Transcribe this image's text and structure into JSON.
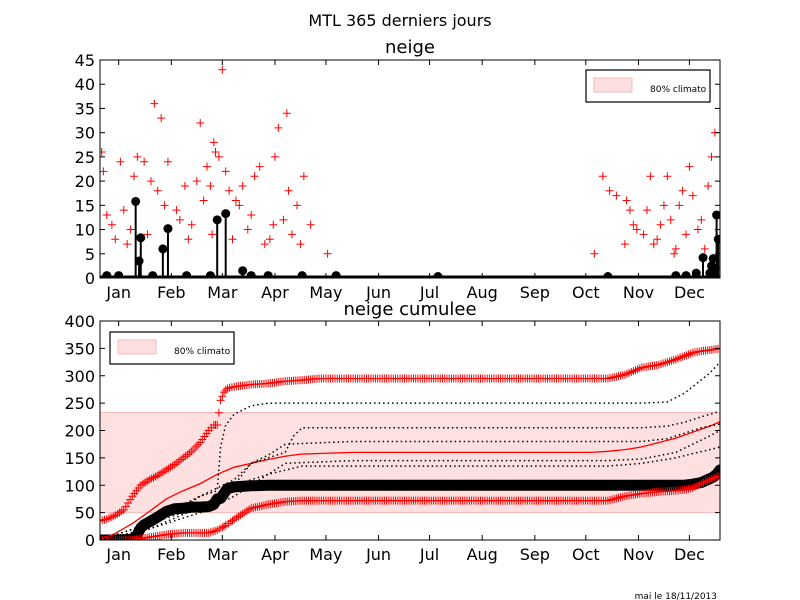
{
  "figure": {
    "suptitle": "MTL 365 derniers jours",
    "footer": "mai le 18/11/2013",
    "colors": {
      "observed": "#000000",
      "climato_points": "#ff0000",
      "band_fill": "#ffe0e0",
      "band_edge": "#f5b8b8",
      "mean_line": "#ff0000"
    }
  },
  "chart_data": [
    {
      "type": "scatter",
      "title": "neige",
      "xlabel": "",
      "ylabel": "",
      "xlim": [
        1,
        366
      ],
      "ylim": [
        0,
        45
      ],
      "yticks": [
        0,
        5,
        10,
        15,
        20,
        25,
        30,
        35,
        40,
        45
      ],
      "xticks": [
        {
          "label": "Jan",
          "day": 12
        },
        {
          "label": "Feb",
          "day": 43
        },
        {
          "label": "Mar",
          "day": 73
        },
        {
          "label": "Apr",
          "day": 104
        },
        {
          "label": "May",
          "day": 134
        },
        {
          "label": "Jun",
          "day": 165
        },
        {
          "label": "Jul",
          "day": 195
        },
        {
          "label": "Aug",
          "day": 226
        },
        {
          "label": "Sep",
          "day": 257
        },
        {
          "label": "Oct",
          "day": 287
        },
        {
          "label": "Nov",
          "day": 318
        },
        {
          "label": "Dec",
          "day": 348
        }
      ],
      "legend": {
        "label": "80% climato",
        "location": "upper right"
      },
      "series": [
        {
          "name": "observed",
          "style": "black stems with dots",
          "x": [
            5,
            12,
            22,
            24,
            25,
            32,
            38,
            41,
            52,
            66,
            70,
            75,
            85,
            90,
            100,
            120,
            140,
            200,
            300,
            340,
            346,
            352,
            356,
            360,
            361,
            362,
            363,
            364,
            365
          ],
          "values": [
            0.5,
            0.5,
            15.8,
            3.5,
            8.3,
            0.5,
            6,
            10.2,
            0.5,
            0.5,
            12,
            13.3,
            1.5,
            0.5,
            0.5,
            0.5,
            0.5,
            0.3,
            0.3,
            0.5,
            0.5,
            1,
            4.2,
            1,
            2.5,
            4,
            2,
            13,
            8
          ]
        },
        {
          "name": "climato",
          "style": "red plus markers",
          "x": [
            2,
            3,
            5,
            8,
            10,
            13,
            15,
            17,
            19,
            21,
            23,
            27,
            29,
            31,
            33,
            35,
            37,
            39,
            41,
            46,
            48,
            51,
            53,
            55,
            58,
            60,
            62,
            64,
            66,
            67,
            68,
            69,
            71,
            73,
            75,
            77,
            79,
            81,
            83,
            85,
            88,
            90,
            92,
            95,
            98,
            101,
            103,
            104,
            106,
            109,
            111,
            112,
            114,
            117,
            119,
            121,
            125,
            135,
            292,
            297,
            301,
            305,
            310,
            311,
            313,
            315,
            317,
            321,
            323,
            325,
            327,
            329,
            331,
            333,
            335,
            337,
            339,
            340,
            342,
            344,
            346,
            348,
            350,
            353,
            355,
            357,
            359,
            361,
            363
          ],
          "values": [
            26,
            22,
            13,
            11,
            8,
            24,
            14,
            7,
            10,
            21,
            25,
            24,
            9,
            20,
            36,
            18,
            33,
            15,
            24,
            14,
            12,
            19,
            8,
            11,
            20,
            32,
            16,
            23,
            19,
            9,
            28,
            26,
            25,
            43,
            22,
            18,
            8,
            16,
            15,
            19,
            10,
            13,
            21,
            23,
            7,
            8,
            11,
            25,
            31,
            12,
            34,
            18,
            9,
            15,
            7,
            21,
            11,
            5,
            5,
            21,
            18,
            17,
            7,
            16,
            14,
            11,
            10,
            9,
            14,
            21,
            7,
            8,
            11,
            15,
            21,
            12,
            5,
            6,
            15,
            18,
            9,
            23,
            17,
            10,
            12,
            6,
            19,
            25,
            30
          ]
        }
      ],
      "band_80pct": "flat at 0 (not visible)"
    },
    {
      "type": "line",
      "title": "neige cumulee",
      "xlabel": "",
      "ylabel": "",
      "xlim": [
        1,
        366
      ],
      "ylim": [
        0,
        400
      ],
      "yticks": [
        0,
        50,
        100,
        150,
        200,
        250,
        300,
        350,
        400
      ],
      "xticks": [
        {
          "label": "Jan",
          "day": 12
        },
        {
          "label": "Feb",
          "day": 43
        },
        {
          "label": "Mar",
          "day": 73
        },
        {
          "label": "Apr",
          "day": 104
        },
        {
          "label": "May",
          "day": 134
        },
        {
          "label": "Jun",
          "day": 165
        },
        {
          "label": "Jul",
          "day": 195
        },
        {
          "label": "Aug",
          "day": 226
        },
        {
          "label": "Sep",
          "day": 257
        },
        {
          "label": "Oct",
          "day": 287
        },
        {
          "label": "Nov",
          "day": 318
        },
        {
          "label": "Dec",
          "day": 348
        }
      ],
      "legend": {
        "label": "80% climato",
        "location": "upper left"
      },
      "band_80pct": [
        50,
        233
      ],
      "series": [
        {
          "name": "observed",
          "style": "black thick dots",
          "x": [
            1,
            10,
            18,
            20,
            22,
            25,
            27,
            30,
            35,
            40,
            45,
            50,
            55,
            60,
            65,
            68,
            70,
            72,
            74,
            76,
            80,
            90,
            100,
            120,
            150,
            200,
            250,
            300,
            310,
            320,
            330,
            340,
            345,
            350,
            355,
            360,
            362,
            364,
            366
          ],
          "values": [
            0,
            0,
            1,
            2,
            5,
            22,
            28,
            33,
            42,
            52,
            57,
            58,
            60,
            60,
            61,
            65,
            75,
            76,
            85,
            94,
            97,
            99,
            100,
            100,
            100,
            100,
            100,
            100,
            100,
            100,
            100,
            100,
            100,
            102,
            105,
            112,
            115,
            120,
            128
          ]
        },
        {
          "name": "mean",
          "style": "red line",
          "x": [
            1,
            10,
            20,
            30,
            40,
            50,
            60,
            70,
            80,
            90,
            100,
            110,
            120,
            130,
            150,
            200,
            250,
            290,
            300,
            310,
            320,
            330,
            340,
            350,
            360,
            366
          ],
          "values": [
            0,
            12,
            30,
            52,
            75,
            90,
            103,
            120,
            133,
            140,
            147,
            153,
            157,
            158,
            160,
            160,
            160,
            160,
            162,
            165,
            170,
            178,
            186,
            197,
            208,
            216
          ]
        },
        {
          "name": "max year",
          "style": "red plus markers",
          "x": [
            1,
            5,
            10,
            15,
            20,
            25,
            30,
            35,
            40,
            45,
            50,
            55,
            60,
            65,
            68,
            70,
            72,
            74,
            76,
            80,
            90,
            100,
            110,
            120,
            130,
            150,
            200,
            250,
            300,
            310,
            320,
            330,
            340,
            350,
            355,
            360,
            366
          ],
          "values": [
            35,
            38,
            45,
            55,
            80,
            100,
            110,
            118,
            128,
            138,
            150,
            162,
            178,
            200,
            210,
            210,
            255,
            270,
            277,
            280,
            284,
            286,
            290,
            292,
            295,
            295,
            295,
            295,
            295,
            302,
            315,
            320,
            330,
            342,
            345,
            347,
            350
          ]
        },
        {
          "name": "min year",
          "style": "red plus markers",
          "x": [
            1,
            10,
            20,
            30,
            40,
            50,
            60,
            65,
            70,
            73,
            75,
            78,
            80,
            85,
            90,
            100,
            110,
            120,
            130,
            150,
            200,
            250,
            300,
            310,
            320,
            330,
            340,
            345,
            350,
            355,
            360,
            366
          ],
          "values": [
            0,
            0,
            0,
            5,
            10,
            13,
            13,
            13,
            18,
            23,
            27,
            33,
            38,
            48,
            58,
            65,
            70,
            72,
            72,
            72,
            72,
            72,
            72,
            80,
            85,
            88,
            90,
            92,
            95,
            103,
            110,
            118
          ]
        },
        {
          "name": "year A",
          "style": "black dotted line",
          "x": [
            1,
            20,
            40,
            60,
            70,
            72,
            75,
            80,
            90,
            100,
            130,
            200,
            250,
            300,
            320,
            335,
            345,
            350,
            360,
            366
          ],
          "values": [
            0,
            10,
            50,
            80,
            90,
            170,
            210,
            230,
            245,
            250,
            250,
            250,
            250,
            250,
            250,
            252,
            268,
            280,
            305,
            325
          ]
        },
        {
          "name": "year B",
          "style": "black dotted line",
          "x": [
            1,
            30,
            50,
            60,
            70,
            80,
            90,
            100,
            110,
            115,
            120,
            200,
            300,
            320,
            335,
            345,
            355,
            366
          ],
          "values": [
            0,
            30,
            60,
            80,
            95,
            110,
            140,
            150,
            160,
            190,
            205,
            205,
            205,
            205,
            208,
            215,
            225,
            235
          ]
        },
        {
          "name": "year C",
          "style": "black dotted line",
          "x": [
            1,
            40,
            60,
            70,
            80,
            90,
            100,
            110,
            150,
            200,
            300,
            320,
            335,
            345,
            355,
            366
          ],
          "values": [
            0,
            40,
            60,
            75,
            100,
            140,
            155,
            175,
            180,
            180,
            180,
            180,
            185,
            195,
            205,
            212
          ]
        },
        {
          "name": "year D",
          "style": "black dotted line",
          "x": [
            1,
            30,
            60,
            80,
            100,
            110,
            150,
            200,
            300,
            320,
            340,
            350,
            360,
            366
          ],
          "values": [
            0,
            20,
            50,
            80,
            120,
            140,
            145,
            145,
            145,
            148,
            160,
            175,
            190,
            200
          ]
        },
        {
          "name": "year E",
          "style": "black dotted line",
          "x": [
            1,
            30,
            60,
            80,
            100,
            120,
            200,
            300,
            320,
            340,
            350,
            360,
            366
          ],
          "values": [
            0,
            20,
            60,
            100,
            120,
            135,
            135,
            135,
            140,
            150,
            158,
            165,
            170
          ]
        }
      ]
    }
  ]
}
